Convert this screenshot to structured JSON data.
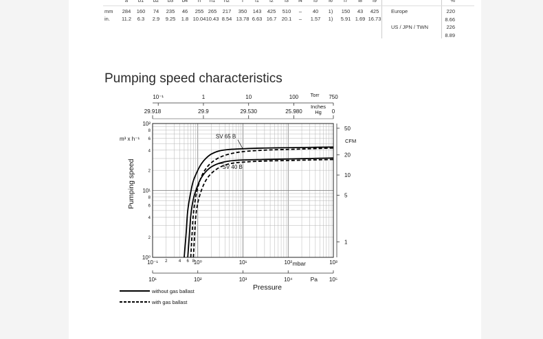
{
  "table": {
    "header_cut": [
      "a",
      "b1",
      "b2",
      "b3",
      "b4",
      "h",
      "h1",
      "h2",
      "l",
      "l1",
      "l2",
      "l3",
      "l4",
      "l5",
      "l6",
      "l7",
      "l8",
      "l9"
    ],
    "rows": [
      {
        "unit": "mm",
        "values": [
          "284",
          "160",
          "74",
          "235",
          "46",
          "255",
          "265",
          "217",
          "350",
          "143",
          "425",
          "510",
          "–",
          "40",
          "1)",
          "150",
          "43",
          "425"
        ]
      },
      {
        "unit": "in.",
        "values": [
          "11.2",
          "6.3",
          "2.9",
          "9.25",
          "1.8",
          "10.04",
          "10.43",
          "8.54",
          "13.78",
          "6.63",
          "16.7",
          "20.1",
          "–",
          "1.57",
          "1)",
          "5.91",
          "1.69",
          "16.73"
        ]
      }
    ],
    "right": {
      "header_cut": "%",
      "rows": [
        {
          "label": "Europe",
          "values": [
            "220",
            "8.66"
          ]
        },
        {
          "label": "US / JPN / TWN",
          "values": [
            "226",
            "8.89"
          ]
        }
      ]
    }
  },
  "page_title": "Pumping speed characteristics",
  "chart_data": {
    "type": "line",
    "xscale": "log",
    "yscale": "log",
    "xlim": [
      0.1,
      1000
    ],
    "ylim": [
      1,
      100
    ],
    "xlabel": "Pressure",
    "ylabel": "Pumping speed",
    "yunit": "m³ x h⁻¹",
    "x_unit_primary": "mbar",
    "x_unit_secondary": "Pa",
    "x_unit_torr": "Torr",
    "x_unit_inhg": "Inches Hg",
    "y_unit_cfm": "CFM",
    "grid": true,
    "top_torr_ticks": [
      "10⁻¹",
      "1",
      "10",
      "100",
      "750"
    ],
    "top_inhg_ticks": [
      "29.918",
      "29.9",
      "29.530",
      "25.980",
      "0"
    ],
    "bottom_mbar_ticks": [
      "10⁻¹",
      "2",
      "4",
      "6",
      "8",
      "10⁰",
      "10¹",
      "10²",
      "10³"
    ],
    "bottom_pa_ticks": [
      "10¹",
      "10²",
      "10³",
      "10⁴",
      "10⁵"
    ],
    "left_ticks": [
      "10⁰",
      "2",
      "4",
      "6",
      "8",
      "10¹",
      "2",
      "4",
      "6",
      "8",
      "10²"
    ],
    "cfm_ticks": [
      "1",
      "5",
      "10",
      "20",
      "50"
    ],
    "annotations": [
      "SV 65 B",
      "SV 40 B"
    ],
    "legend": [
      "without gas ballast",
      "with gas ballast"
    ],
    "legend_position": "bottom-left",
    "series": [
      {
        "name": "SV 65 B",
        "style": "solid",
        "x": [
          0.5,
          0.55,
          0.6,
          0.7,
          0.8,
          1,
          1.2,
          1.5,
          2,
          3,
          5,
          10,
          30,
          100,
          300,
          1000
        ],
        "y": [
          1,
          2.2,
          5,
          9.5,
          14,
          20,
          25,
          30,
          35,
          39,
          41,
          42,
          43,
          43.5,
          44,
          44.5
        ]
      },
      {
        "name": "SV 65 B",
        "style": "dashed",
        "x": [
          0.7,
          0.75,
          0.8,
          0.9,
          1,
          1.2,
          1.5,
          2,
          3,
          5,
          10,
          30,
          100,
          300,
          1000
        ],
        "y": [
          1,
          2.3,
          4.5,
          8,
          11,
          16,
          21,
          26,
          31,
          35,
          38,
          40,
          41,
          42,
          43
        ]
      },
      {
        "name": "SV 40 B",
        "style": "solid",
        "x": [
          0.6,
          0.65,
          0.7,
          0.8,
          1,
          1.2,
          1.5,
          2,
          3,
          5,
          10,
          30,
          100,
          300,
          1000
        ],
        "y": [
          1,
          2.1,
          4.2,
          7.5,
          12,
          15.5,
          19,
          22.5,
          25.5,
          27.5,
          28.5,
          29,
          29.5,
          30,
          30.5
        ]
      },
      {
        "name": "SV 40 B",
        "style": "dashed",
        "x": [
          0.8,
          0.85,
          0.9,
          1,
          1.2,
          1.5,
          2,
          3,
          5,
          10,
          30,
          100,
          300,
          1000
        ],
        "y": [
          1,
          2.1,
          4,
          6.5,
          10,
          14,
          18,
          22,
          25,
          26.5,
          27.5,
          28,
          28.5,
          29
        ]
      }
    ]
  }
}
